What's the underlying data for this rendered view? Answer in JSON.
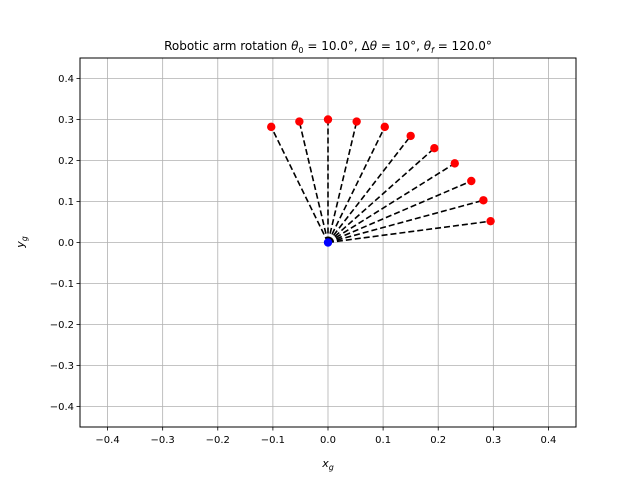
{
  "chart_data": {
    "type": "scatter",
    "title": "Robotic arm rotation θ₀ = 10.0°, Δθ = 10°, θ_f = 120.0°",
    "title_parts": {
      "prefix": "Robotic arm rotation ",
      "theta0_symbol": "θ",
      "theta0_sub": "0",
      "theta0_value": " = 10.0°, Δ",
      "dtheta_symbol": "θ",
      "dtheta_value": " = 10°, ",
      "thetaf_symbol": "θ",
      "thetaf_sub": "f",
      "thetaf_value": " = 120.0°"
    },
    "xlabel": {
      "main": "x",
      "sub": "g"
    },
    "ylabel": {
      "main": "y",
      "sub": "g"
    },
    "xlim": [
      -0.45,
      0.45
    ],
    "ylim": [
      -0.45,
      0.45
    ],
    "xticks": [
      -0.4,
      -0.3,
      -0.2,
      -0.1,
      0.0,
      0.1,
      0.2,
      0.3,
      0.4
    ],
    "yticks": [
      -0.4,
      -0.3,
      -0.2,
      -0.1,
      0.0,
      0.1,
      0.2,
      0.3,
      0.4
    ],
    "xtick_labels": [
      "−0.4",
      "−0.3",
      "−0.2",
      "−0.1",
      "0.0",
      "0.1",
      "0.2",
      "0.3",
      "0.4"
    ],
    "ytick_labels": [
      "−0.4",
      "−0.3",
      "−0.2",
      "−0.1",
      "0.0",
      "0.1",
      "0.2",
      "0.3",
      "0.4"
    ],
    "grid": true,
    "arm_length": 0.3,
    "angles_deg": [
      10,
      20,
      30,
      40,
      50,
      60,
      70,
      80,
      90,
      100,
      110
    ],
    "base": {
      "x": 0.0,
      "y": 0.0,
      "color": "#0000ff"
    },
    "tips": [
      {
        "x": 0.295,
        "y": 0.052
      },
      {
        "x": 0.282,
        "y": 0.103
      },
      {
        "x": 0.26,
        "y": 0.15
      },
      {
        "x": 0.23,
        "y": 0.193
      },
      {
        "x": 0.193,
        "y": 0.23
      },
      {
        "x": 0.15,
        "y": 0.26
      },
      {
        "x": 0.103,
        "y": 0.282
      },
      {
        "x": 0.052,
        "y": 0.295
      },
      {
        "x": 0.0,
        "y": 0.3
      },
      {
        "x": -0.052,
        "y": 0.295
      },
      {
        "x": -0.103,
        "y": 0.282
      }
    ],
    "tip_color": "#ff0000",
    "line_color": "#000000",
    "line_style": "dashed"
  }
}
